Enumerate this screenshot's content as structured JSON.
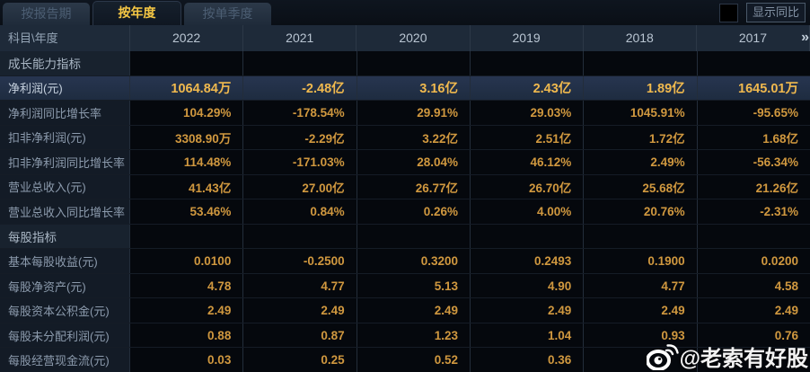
{
  "tabs": [
    {
      "label": "按报告期",
      "active": false
    },
    {
      "label": "按年度",
      "active": true
    },
    {
      "label": "按单季度",
      "active": false
    }
  ],
  "controls": {
    "show_yoy_label": "显示同比"
  },
  "table": {
    "corner_header": "科目\\年度",
    "years": [
      "2022",
      "2021",
      "2020",
      "2019",
      "2018",
      "2017"
    ],
    "more_icon": "»",
    "rows": [
      {
        "type": "section",
        "label": "成长能力指标",
        "values": [
          "",
          "",
          "",
          "",
          "",
          ""
        ]
      },
      {
        "type": "highlight",
        "label": "净利润(元)",
        "values": [
          "1064.84万",
          "-2.48亿",
          "3.16亿",
          "2.43亿",
          "1.89亿",
          "1645.01万"
        ]
      },
      {
        "type": "data",
        "label": "净利润同比增长率",
        "values": [
          "104.29%",
          "-178.54%",
          "29.91%",
          "29.03%",
          "1045.91%",
          "-95.65%"
        ]
      },
      {
        "type": "data",
        "label": "扣非净利润(元)",
        "values": [
          "3308.90万",
          "-2.29亿",
          "3.22亿",
          "2.51亿",
          "1.72亿",
          "1.68亿"
        ]
      },
      {
        "type": "data",
        "label": "扣非净利润同比增长率",
        "values": [
          "114.48%",
          "-171.03%",
          "28.04%",
          "46.12%",
          "2.49%",
          "-56.34%"
        ]
      },
      {
        "type": "data",
        "label": "营业总收入(元)",
        "values": [
          "41.43亿",
          "27.00亿",
          "26.77亿",
          "26.70亿",
          "25.68亿",
          "21.26亿"
        ]
      },
      {
        "type": "data",
        "label": "营业总收入同比增长率",
        "values": [
          "53.46%",
          "0.84%",
          "0.26%",
          "4.00%",
          "20.76%",
          "-2.31%"
        ]
      },
      {
        "type": "section",
        "label": "每股指标",
        "values": [
          "",
          "",
          "",
          "",
          "",
          ""
        ]
      },
      {
        "type": "data",
        "label": "基本每股收益(元)",
        "values": [
          "0.0100",
          "-0.2500",
          "0.3200",
          "0.2493",
          "0.1900",
          "0.0200"
        ]
      },
      {
        "type": "data",
        "label": "每股净资产(元)",
        "values": [
          "4.78",
          "4.77",
          "5.13",
          "4.90",
          "4.77",
          "4.58"
        ]
      },
      {
        "type": "data",
        "label": "每股资本公积金(元)",
        "values": [
          "2.49",
          "2.49",
          "2.49",
          "2.49",
          "2.49",
          "2.49"
        ]
      },
      {
        "type": "data",
        "label": "每股未分配利润(元)",
        "values": [
          "0.88",
          "0.87",
          "1.23",
          "1.04",
          "0.93",
          "0.76"
        ]
      },
      {
        "type": "data",
        "label": "每股经营现金流(元)",
        "values": [
          "0.03",
          "0.25",
          "0.52",
          "0.36",
          "",
          ""
        ]
      }
    ]
  },
  "watermark": {
    "text": "@老索有好股",
    "icon": "weibo-icon"
  },
  "colors": {
    "accent_gold": "#f6c844",
    "value_orange": "#d0983f",
    "highlight_value": "#f0b94e",
    "header_bg": "#1e2a39",
    "highlight_row_bg": "#273550",
    "label_col_bg": "#131b26",
    "cell_bg": "#05080d"
  }
}
